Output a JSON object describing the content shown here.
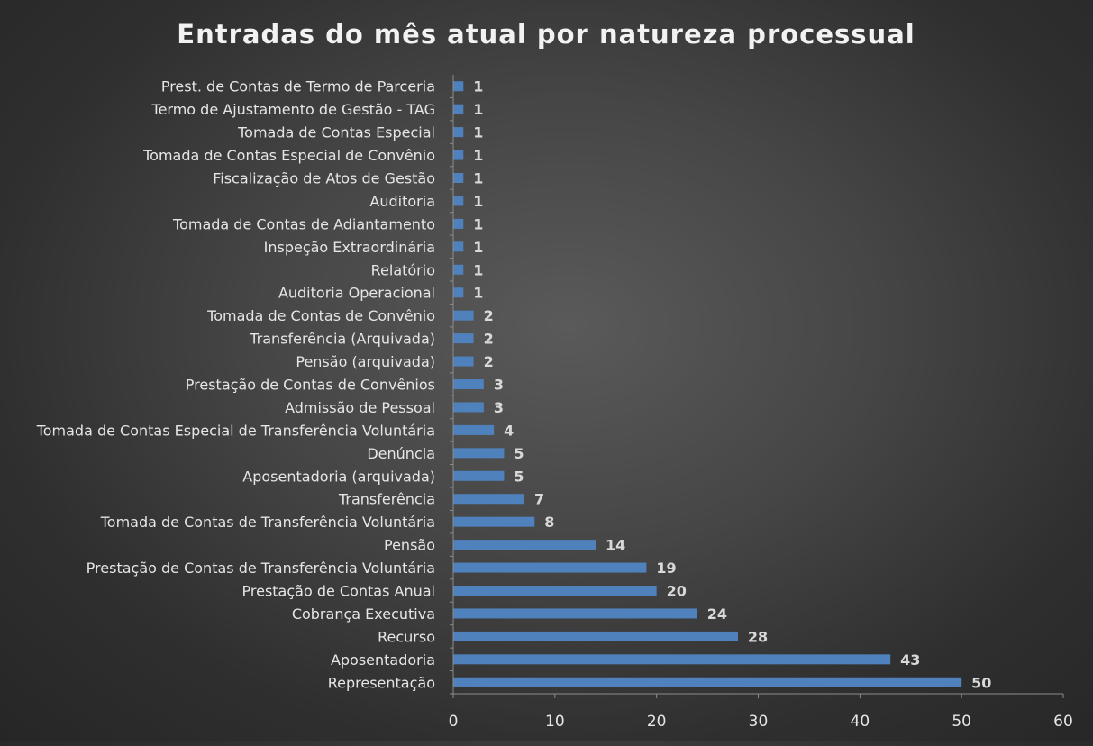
{
  "chart_data": {
    "type": "bar",
    "orientation": "horizontal",
    "title": "Entradas do mês atual por natureza processual",
    "xlabel": "",
    "ylabel": "",
    "xlim": [
      0,
      60
    ],
    "xticks": [
      0,
      10,
      20,
      30,
      40,
      50,
      60
    ],
    "grid": false,
    "legend": "none",
    "bar_color": "#4f81bd",
    "categories": [
      "Representação",
      "Aposentadoria",
      "Recurso",
      "Cobrança Executiva",
      "Prestação de Contas Anual",
      "Prestação de Contas de Transferência Voluntária",
      "Pensão",
      "Tomada de Contas de Transferência Voluntária",
      "Transferência",
      "Aposentadoria (arquivada)",
      "Denúncia",
      "Tomada de Contas Especial de Transferência Voluntária",
      "Admissão de Pessoal",
      "Prestação de Contas de Convênios",
      "Pensão (arquivada)",
      "Transferência (Arquivada)",
      "Tomada de Contas de Convênio",
      "Auditoria Operacional",
      "Relatório",
      "Inspeção Extraordinária",
      "Tomada de Contas de Adiantamento",
      "Auditoria",
      "Fiscalização de Atos de Gestão",
      "Tomada de Contas Especial de Convênio",
      "Tomada de Contas Especial",
      "Termo de Ajustamento de Gestão - TAG",
      "Prest. de Contas de Termo de Parceria"
    ],
    "values": [
      50,
      43,
      28,
      24,
      20,
      19,
      14,
      8,
      7,
      5,
      5,
      4,
      3,
      3,
      2,
      2,
      2,
      1,
      1,
      1,
      1,
      1,
      1,
      1,
      1,
      1,
      1
    ]
  }
}
